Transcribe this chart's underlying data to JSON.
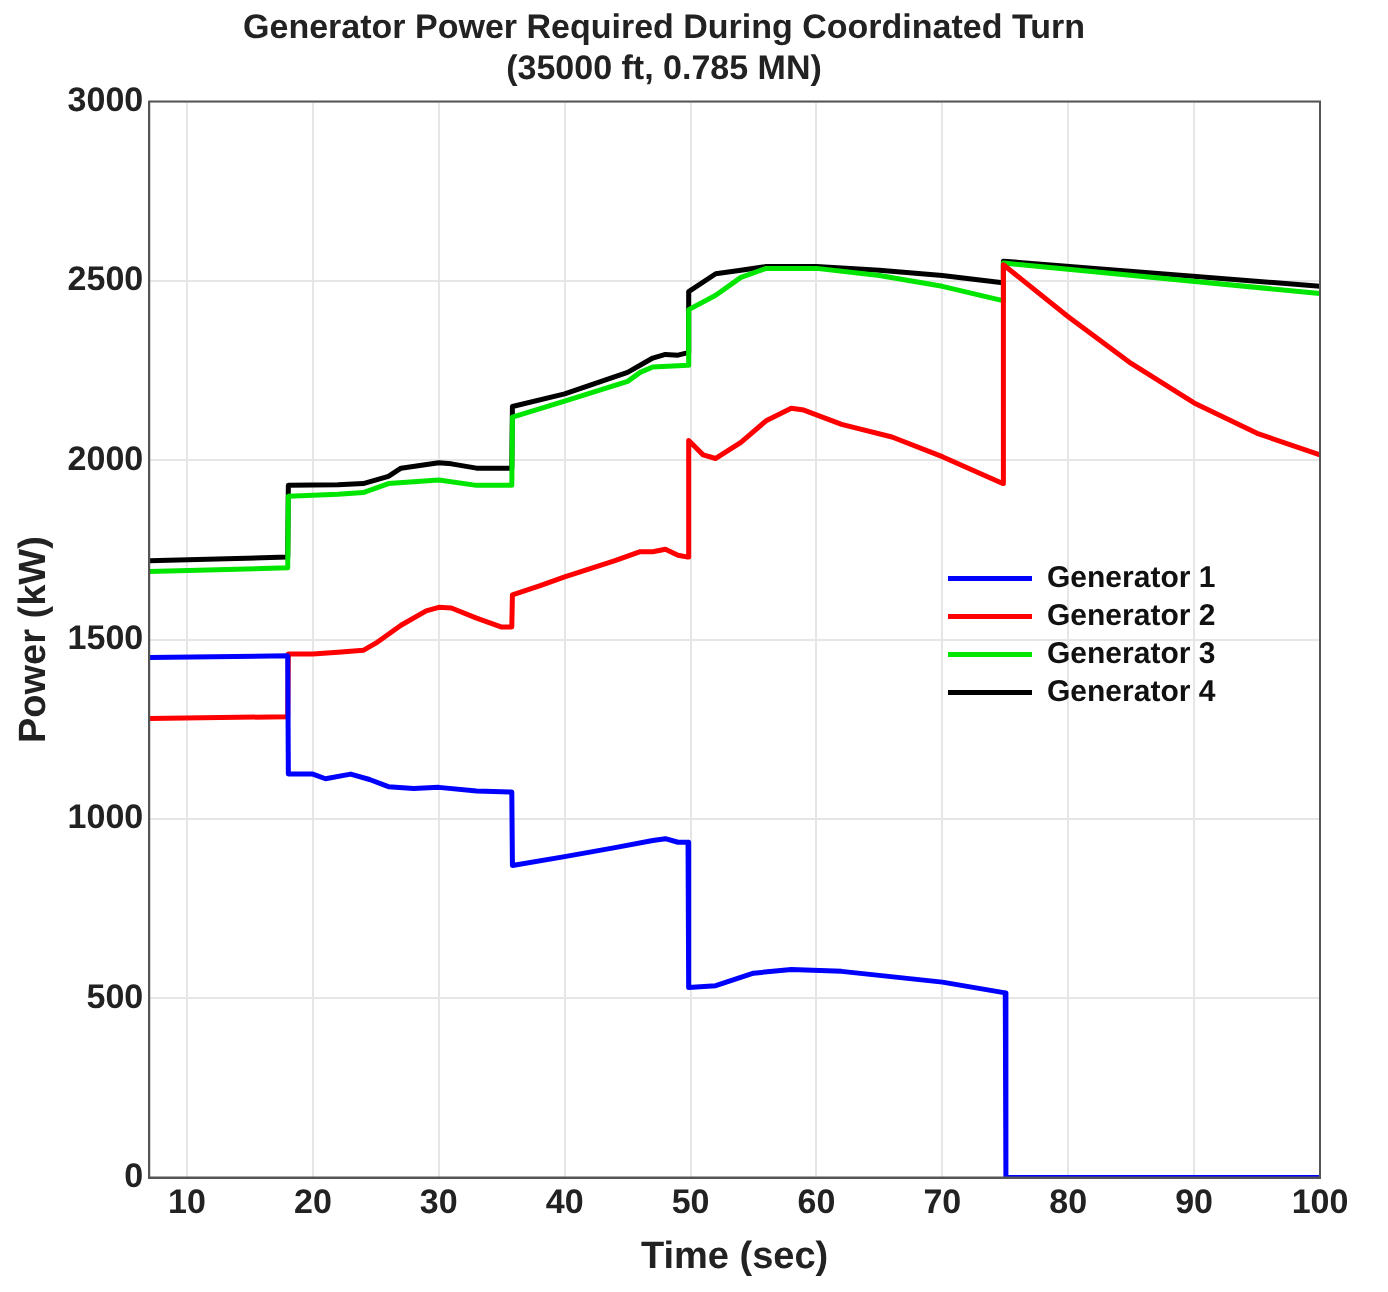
{
  "chart_data": {
    "type": "line",
    "title": "Generator Power Required During Coordinated Turn",
    "subtitle": "(35000 ft, 0.785 MN)",
    "xlabel": "Time (sec)",
    "ylabel": "Power (kW)",
    "xlim": [
      7,
      100
    ],
    "xticks": [
      10,
      20,
      30,
      40,
      50,
      60,
      70,
      80,
      90,
      100
    ],
    "ylim": [
      0,
      3000
    ],
    "yticks": [
      0,
      500,
      1000,
      1500,
      2000,
      2500,
      3000
    ],
    "grid": true,
    "legend": "right",
    "marker": "none",
    "line_style": "solid",
    "series": [
      {
        "name": "Generator 1",
        "color": "#0000ff",
        "x": [
          7,
          18,
          18.05,
          20,
          21,
          23,
          24.5,
          26,
          28,
          30,
          33,
          35.8,
          35.85,
          40,
          44,
          47,
          48,
          49,
          49.8,
          49.85,
          52,
          55,
          58,
          62,
          70,
          75,
          75.05,
          100
        ],
        "values": [
          1450,
          1455,
          1125,
          1125,
          1112,
          1125,
          1110,
          1090,
          1085,
          1088,
          1078,
          1075,
          870,
          895,
          920,
          940,
          945,
          935,
          935,
          530,
          535,
          570,
          580,
          575,
          545,
          515,
          0,
          0
        ]
      },
      {
        "name": "Generator 2",
        "color": "#ff0000",
        "x": [
          7,
          18,
          18.05,
          20,
          22,
          24,
          25,
          27,
          29,
          30,
          31,
          33,
          35,
          35.8,
          35.85,
          38,
          40,
          44,
          46,
          47,
          48,
          49,
          49.8,
          49.85,
          51,
          52,
          54,
          56,
          58,
          59,
          62,
          66,
          70,
          74.8,
          74.85,
          80,
          85,
          90,
          95,
          100
        ],
        "values": [
          1280,
          1285,
          1460,
          1460,
          1465,
          1470,
          1490,
          1540,
          1580,
          1590,
          1588,
          1560,
          1535,
          1535,
          1625,
          1650,
          1675,
          1720,
          1745,
          1745,
          1752,
          1735,
          1730,
          2055,
          2015,
          2005,
          2050,
          2110,
          2145,
          2140,
          2100,
          2065,
          2010,
          1935,
          2545,
          2400,
          2270,
          2160,
          2075,
          2015
        ]
      },
      {
        "name": "Generator 3",
        "color": "#00e600",
        "x": [
          7,
          18,
          18.05,
          22,
          24,
          26,
          30,
          33,
          35.8,
          35.85,
          40,
          45,
          46,
          47,
          49.8,
          49.85,
          52,
          54,
          56,
          60,
          65,
          70,
          74.8,
          74.85,
          100
        ],
        "values": [
          1690,
          1700,
          1900,
          1905,
          1910,
          1935,
          1945,
          1930,
          1930,
          2120,
          2165,
          2220,
          2245,
          2260,
          2265,
          2420,
          2460,
          2510,
          2535,
          2535,
          2515,
          2485,
          2445,
          2550,
          2465
        ]
      },
      {
        "name": "Generator 4",
        "color": "#000000",
        "x": [
          7,
          18,
          18.05,
          22,
          24,
          26,
          27,
          30,
          31,
          33,
          35.8,
          35.85,
          40,
          45,
          47,
          48,
          49,
          49.8,
          49.85,
          52,
          54,
          56,
          60,
          65,
          70,
          74.8,
          74.85,
          100
        ],
        "values": [
          1720,
          1730,
          1930,
          1932,
          1935,
          1955,
          1978,
          1993,
          1990,
          1978,
          1978,
          2150,
          2185,
          2245,
          2285,
          2295,
          2293,
          2300,
          2470,
          2520,
          2530,
          2540,
          2540,
          2530,
          2515,
          2495,
          2555,
          2485
        ]
      }
    ]
  }
}
